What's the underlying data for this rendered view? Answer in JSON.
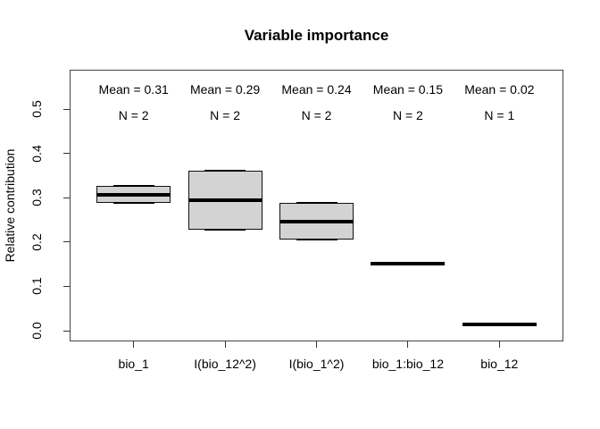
{
  "title": "Variable importance",
  "y_axis": {
    "label": "Relative contribution"
  },
  "chart_data": {
    "type": "boxplot",
    "title": "Variable importance",
    "xlabel": "",
    "ylabel": "Relative contribution",
    "categories": [
      "bio_1",
      "I(bio_12^2)",
      "I(bio_1^2)",
      "bio_1:bio_12",
      "bio_12"
    ],
    "series": [
      {
        "name": "bio_1",
        "n": 2,
        "mean": 0.31,
        "min": 0.288,
        "median": 0.307,
        "max": 0.326,
        "mean_label": "Mean = 0.31",
        "n_label": "N = 2"
      },
      {
        "name": "I(bio_12^2)",
        "n": 2,
        "mean": 0.29,
        "min": 0.228,
        "median": 0.294,
        "max": 0.36,
        "mean_label": "Mean = 0.29",
        "n_label": "N = 2"
      },
      {
        "name": "I(bio_1^2)",
        "n": 2,
        "mean": 0.24,
        "min": 0.205,
        "median": 0.246,
        "max": 0.288,
        "mean_label": "Mean = 0.24",
        "n_label": "N = 2"
      },
      {
        "name": "bio_1:bio_12",
        "n": 2,
        "mean": 0.15,
        "min": 0.152,
        "median": 0.152,
        "max": 0.152,
        "mean_label": "Mean = 0.15",
        "n_label": "N = 2"
      },
      {
        "name": "bio_12",
        "n": 1,
        "mean": 0.02,
        "min": 0.015,
        "median": 0.015,
        "max": 0.015,
        "mean_label": "Mean = 0.02",
        "n_label": "N = 1"
      }
    ],
    "yticks": [
      {
        "value": 0.0,
        "label": "0.0"
      },
      {
        "value": 0.1,
        "label": "0.1"
      },
      {
        "value": 0.2,
        "label": "0.2"
      },
      {
        "value": 0.3,
        "label": "0.3"
      },
      {
        "value": 0.4,
        "label": "0.4"
      },
      {
        "value": 0.5,
        "label": "0.5"
      }
    ],
    "ylim": [
      -0.022,
      0.588
    ],
    "grid": false,
    "legend": null,
    "colors": {
      "box_fill": "#d3d3d3",
      "line": "#000000",
      "frame": "#444444",
      "tick": "#333333"
    }
  }
}
